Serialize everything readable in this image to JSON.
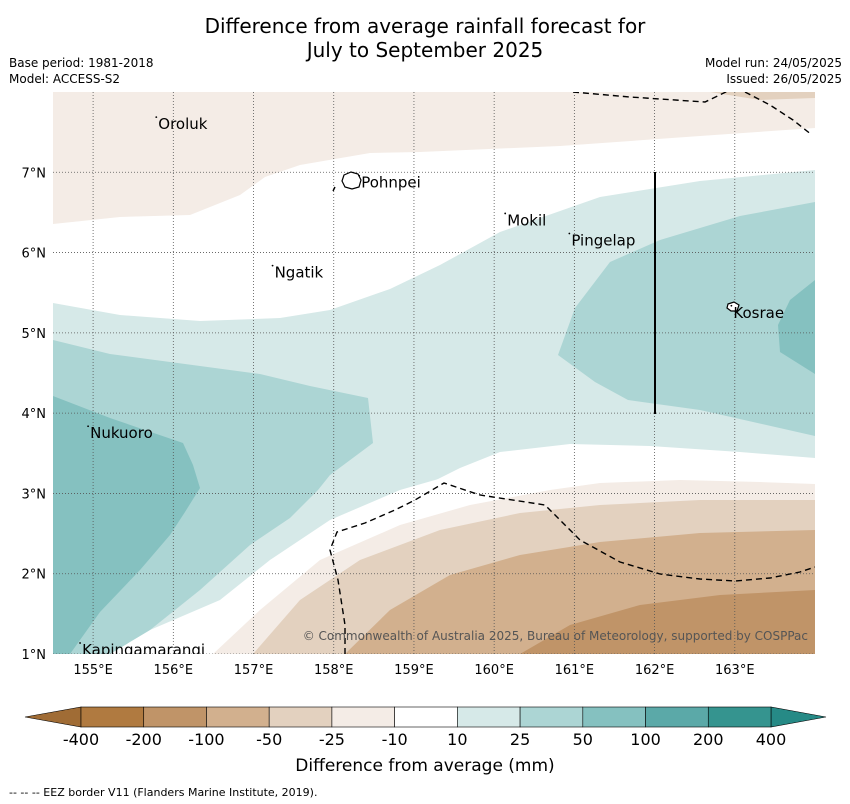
{
  "title_line1": "Difference from average rainfall forecast for",
  "title_line2": "July to September 2025",
  "base_period": "Base period: 1981-2018",
  "model": "Model: ACCESS-S2",
  "model_run": "Model run: 24/05/2025",
  "issued": "Issued: 26/05/2025",
  "copyright": "© Commonwealth of Australia 2025, Bureau of Meteorology, supported by COSPPac",
  "footer_note": "--  --  -- EEZ border V11 (Flanders Marine Institute, 2019).",
  "colorbar_label": "Difference from average (mm)",
  "lon_ticks": [
    "155°E",
    "156°E",
    "157°E",
    "158°E",
    "159°E",
    "160°E",
    "161°E",
    "162°E",
    "163°E"
  ],
  "lat_ticks": [
    "1°N",
    "2°N",
    "3°N",
    "4°N",
    "5°N",
    "6°N",
    "7°N"
  ],
  "colorbar_ticks": [
    "-400",
    "-200",
    "-100",
    "-50",
    "-25",
    "-10",
    "10",
    "25",
    "50",
    "100",
    "200",
    "400"
  ],
  "colorbar_colors": [
    "#b07a40",
    "#c09468",
    "#d2b08e",
    "#e3d1bf",
    "#f4ece6",
    "#ffffff",
    "#d6e9e8",
    "#acd5d4",
    "#85c1c0",
    "#5ba9a8",
    "#35948f"
  ],
  "places": [
    {
      "name": "Oroluk",
      "lon": 155.8,
      "lat": 7.6
    },
    {
      "name": "Pohnpei",
      "lon": 158.33,
      "lat": 6.87
    },
    {
      "name": "Mokil",
      "lon": 160.15,
      "lat": 6.4
    },
    {
      "name": "Pingelap",
      "lon": 160.95,
      "lat": 6.15
    },
    {
      "name": "Ngatik",
      "lon": 157.25,
      "lat": 5.75
    },
    {
      "name": "Kosrae",
      "lon": 162.97,
      "lat": 5.25
    },
    {
      "name": "Nukuoro",
      "lon": 154.95,
      "lat": 3.75
    },
    {
      "name": "Kapingamarangi",
      "lon": 154.85,
      "lat": 1.05
    }
  ]
}
